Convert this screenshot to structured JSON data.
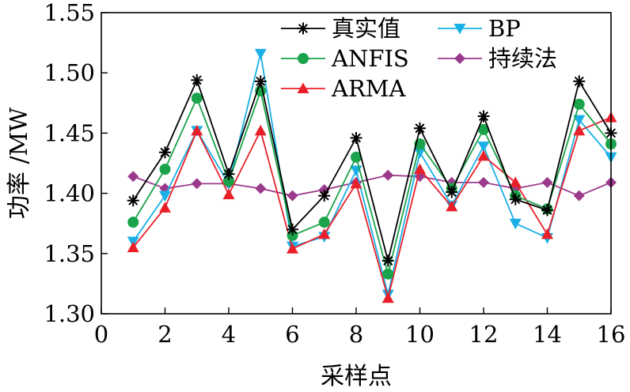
{
  "chart_data": {
    "type": "line",
    "title": "",
    "xlabel": "采样点",
    "ylabel": "功率 /MW",
    "xlim": [
      0,
      16
    ],
    "ylim": [
      1.3,
      1.55
    ],
    "xticks": [
      0,
      2,
      4,
      6,
      8,
      10,
      12,
      14,
      16
    ],
    "yticks": [
      1.3,
      1.35,
      1.4,
      1.45,
      1.5,
      1.55
    ],
    "xtick_labels": [
      "0",
      "2",
      "4",
      "6",
      "8",
      "10",
      "12",
      "14",
      "16"
    ],
    "ytick_labels": [
      "1.30",
      "1.35",
      "1.40",
      "1.45",
      "1.50",
      "1.55"
    ],
    "grid": false,
    "legend_position": "top",
    "x": [
      1,
      2,
      3,
      4,
      5,
      6,
      7,
      8,
      9,
      10,
      11,
      12,
      13,
      14,
      15,
      16
    ],
    "series": [
      {
        "name": "真实值",
        "color": "#000000",
        "marker": "asterisk",
        "values": [
          1.394,
          1.434,
          1.494,
          1.416,
          1.493,
          1.37,
          1.398,
          1.446,
          1.344,
          1.454,
          1.401,
          1.464,
          1.395,
          1.386,
          1.493,
          1.45
        ]
      },
      {
        "name": "ANFIS",
        "color": "#1aa34a",
        "marker": "circle",
        "values": [
          1.376,
          1.42,
          1.479,
          1.41,
          1.485,
          1.365,
          1.376,
          1.43,
          1.333,
          1.441,
          1.404,
          1.453,
          1.398,
          1.387,
          1.474,
          1.441
        ]
      },
      {
        "name": "ARMA",
        "color": "#e8202a",
        "marker": "triangle-up",
        "values": [
          1.355,
          1.388,
          1.452,
          1.399,
          1.452,
          1.354,
          1.366,
          1.408,
          1.313,
          1.42,
          1.389,
          1.431,
          1.409,
          1.366,
          1.452,
          1.463
        ]
      },
      {
        "name": "BP",
        "color": "#1ab0e6",
        "marker": "triangle-down",
        "values": [
          1.36,
          1.398,
          1.452,
          1.408,
          1.516,
          1.356,
          1.364,
          1.419,
          1.316,
          1.434,
          1.39,
          1.439,
          1.375,
          1.363,
          1.461,
          1.43
        ]
      },
      {
        "name": "持续法",
        "color": "#9b3a8c",
        "marker": "diamond",
        "values": [
          1.414,
          1.404,
          1.408,
          1.408,
          1.404,
          1.398,
          1.403,
          1.409,
          1.415,
          1.414,
          1.409,
          1.409,
          1.404,
          1.409,
          1.398,
          1.409
        ]
      }
    ]
  }
}
